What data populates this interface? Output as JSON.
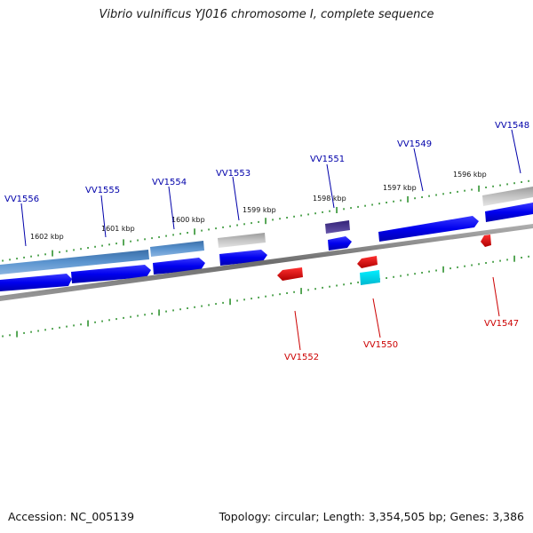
{
  "title": "Vibrio vulnificus YJ016 chromosome I, complete sequence",
  "footer": {
    "accession": "Accession: NC_005139",
    "summary": "Topology: circular; Length: 3,354,505 bp; Genes: 3,386"
  },
  "colors": {
    "label_top": "#0000aa",
    "label_bottom": "#cc0000",
    "tick": "#228b22",
    "backbone": "#808080"
  },
  "ruler_labels": [
    "1602 kbp",
    "1601 kbp",
    "1600 kbp",
    "1599 kbp",
    "1598 kbp",
    "1597 kbp",
    "1596 kbp"
  ],
  "genes_top_labels": [
    "VV1556",
    "VV1555",
    "VV1554",
    "VV1553",
    "VV1551",
    "VV1549",
    "VV1548"
  ],
  "genes_bottom_labels": [
    "VV1552",
    "VV1550",
    "VV1547"
  ]
}
